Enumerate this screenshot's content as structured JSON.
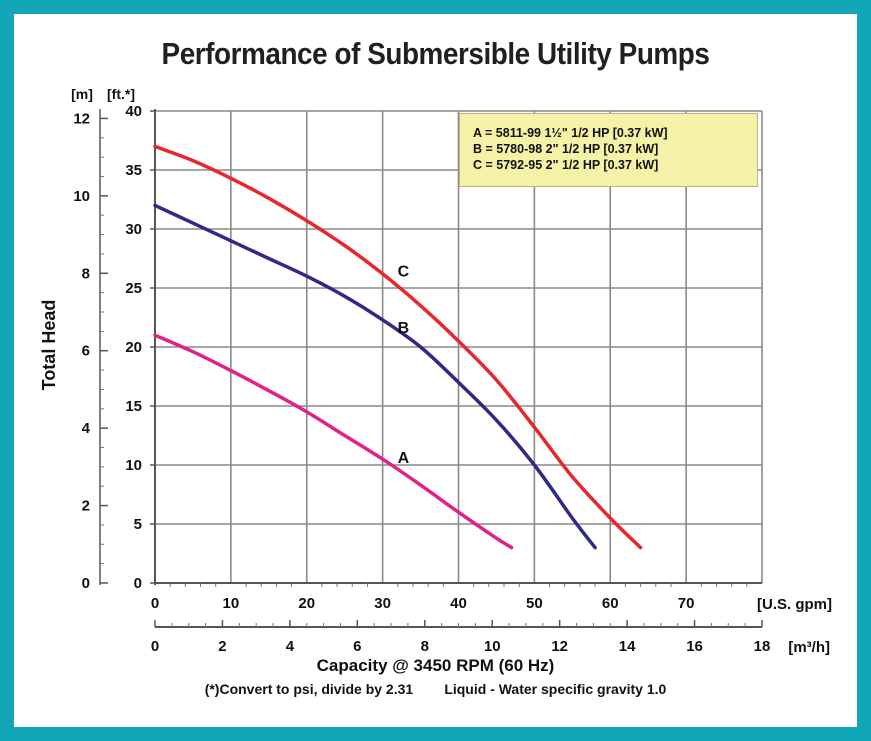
{
  "chart_data": {
    "type": "line",
    "title": "Performance of Submersible Utility Pumps",
    "xlabel": "Capacity @ 3450 RPM (60 Hz)",
    "ylabel": "Total Head",
    "x_unit_primary": "[U.S. gpm]",
    "x_unit_secondary": "[m³/h]",
    "y_unit_left_outer": "[m]",
    "y_unit_left_inner": "[ft.*]",
    "x_ticks_gpm": [
      "0",
      "10",
      "20",
      "30",
      "40",
      "50",
      "60",
      "70"
    ],
    "x_ticks_m3h": [
      "0",
      "2",
      "4",
      "6",
      "8",
      "10",
      "12",
      "14",
      "16",
      "18"
    ],
    "y_ticks_ft": [
      "0",
      "5",
      "10",
      "15",
      "20",
      "25",
      "30",
      "35",
      "40"
    ],
    "y_ticks_m": [
      "0",
      "2",
      "4",
      "6",
      "8",
      "10",
      "12"
    ],
    "xlim_gpm": [
      0,
      80
    ],
    "xlim_m3h": [
      0,
      18
    ],
    "ylim_ft": [
      0,
      40
    ],
    "grid": true,
    "legend": {
      "placement": "top-right",
      "entries": [
        "A = 5811-99 1½\" 1/2 HP [0.37 kW]",
        "B = 5780-98 2\" 1/2 HP [0.37 kW]",
        "C = 5792-95 2\" 1/2 HP [0.37 kW]"
      ]
    },
    "series": [
      {
        "name": "A",
        "color": "#e0218a",
        "x": [
          0,
          5,
          10,
          15,
          20,
          25,
          30,
          35,
          40,
          45,
          47
        ],
        "y": [
          21,
          19.6,
          18,
          16.3,
          14.5,
          12.5,
          10.5,
          8.3,
          6,
          3.8,
          3
        ]
      },
      {
        "name": "B",
        "color": "#2e2a86",
        "x": [
          0,
          5,
          10,
          15,
          20,
          25,
          30,
          35,
          40,
          45,
          50,
          55,
          58
        ],
        "y": [
          32,
          30.5,
          29,
          27.5,
          26,
          24.3,
          22.3,
          20,
          17,
          13.8,
          10,
          5.5,
          3
        ]
      },
      {
        "name": "C",
        "color": "#e8262b",
        "x": [
          0,
          5,
          10,
          15,
          20,
          25,
          30,
          35,
          40,
          45,
          50,
          55,
          60,
          64
        ],
        "y": [
          37,
          35.8,
          34.3,
          32.6,
          30.7,
          28.6,
          26.2,
          23.5,
          20.5,
          17.2,
          13.2,
          9,
          5.5,
          3
        ]
      }
    ]
  },
  "footer": {
    "note_left": "(*)Convert to psi, divide by 2.31",
    "note_right": "Liquid - Water specific gravity 1.0"
  }
}
